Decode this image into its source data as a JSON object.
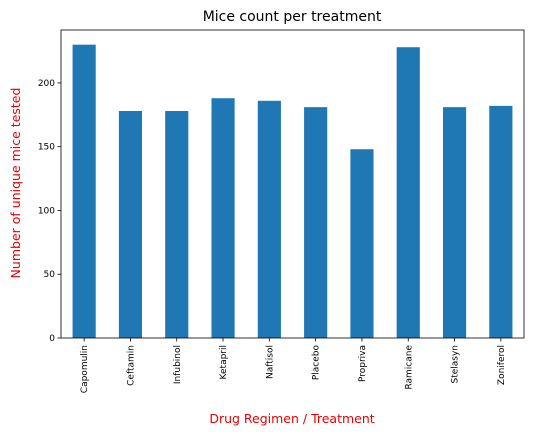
{
  "chart_data": {
    "type": "bar",
    "title": "Mice count per treatment",
    "xlabel": "Drug Regimen / Treatment",
    "ylabel": "Number of unique mice tested",
    "categories": [
      "Capomulin",
      "Ceftamin",
      "Infubinol",
      "Ketapril",
      "Naftisol",
      "Placebo",
      "Propriva",
      "Ramicane",
      "Stelasyn",
      "Zoniferol"
    ],
    "values": [
      230,
      178,
      178,
      188,
      186,
      181,
      148,
      228,
      181,
      182
    ],
    "ylim": [
      0,
      241.5
    ],
    "yticks": [
      0,
      50,
      100,
      150,
      200
    ],
    "grid": false,
    "bar_color": "#1f77b4",
    "axis_label_color": "#e60000"
  }
}
